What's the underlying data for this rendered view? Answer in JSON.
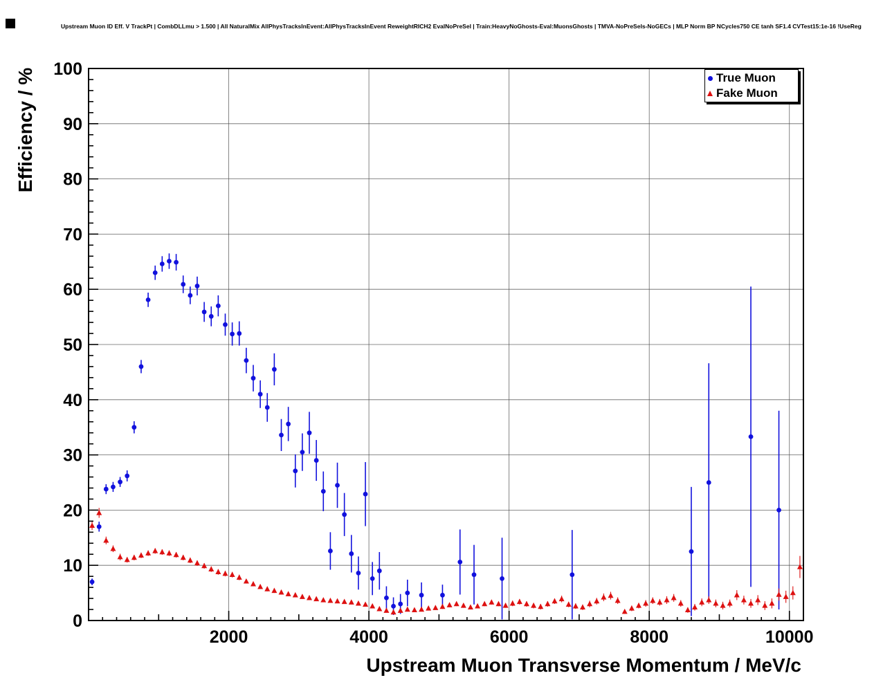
{
  "chart_data": {
    "type": "scatter",
    "title": "Upstream Muon ID Eff. V TrackPt | CombDLLmu > 1.500 | All NaturalMix AllPhysTracksInEvent:AllPhysTracksInEvent ReweightRICH2 EvalNoPreSel | Train:HeavyNoGhosts-Eval:MuonsGhosts | TMVA-NoPreSels-NoGECs | MLP Norm BP NCycles750 CE tanh SF1.4 CVTest15:1e-16 !UseReg",
    "xlabel": "Upstream Muon Transverse Momentum / MeV/c",
    "ylabel": "Efficiency / %",
    "xlim": [
      0,
      10200
    ],
    "ylim": [
      0,
      100
    ],
    "x_ticks": [
      2000,
      4000,
      6000,
      8000,
      10000
    ],
    "y_ticks": [
      0,
      10,
      20,
      30,
      40,
      50,
      60,
      70,
      80,
      90,
      100
    ],
    "x_minor": 200,
    "y_minor": 2,
    "grid": true,
    "legend": {
      "position": "top-right",
      "entries": [
        {
          "label": "True Muon",
          "color": "#1111dd",
          "marker": "circle"
        },
        {
          "label": "Fake Muon",
          "color": "#dd1111",
          "marker": "triangle"
        }
      ]
    },
    "series": [
      {
        "name": "True Muon",
        "color": "#1111dd",
        "marker": "circle",
        "points": [
          [
            50,
            7.0,
            0.6
          ],
          [
            150,
            17.0,
            0.9
          ],
          [
            250,
            23.8,
            0.9
          ],
          [
            350,
            24.2,
            0.9
          ],
          [
            450,
            25.1,
            0.9
          ],
          [
            550,
            26.2,
            1.0
          ],
          [
            650,
            35.0,
            1.1
          ],
          [
            750,
            46.0,
            1.2
          ],
          [
            850,
            58.1,
            1.3
          ],
          [
            950,
            63.0,
            1.3
          ],
          [
            1050,
            64.6,
            1.4
          ],
          [
            1150,
            65.1,
            1.4
          ],
          [
            1250,
            64.9,
            1.5
          ],
          [
            1350,
            60.9,
            1.6
          ],
          [
            1450,
            58.9,
            1.6
          ],
          [
            1550,
            60.6,
            1.7
          ],
          [
            1650,
            55.9,
            1.8
          ],
          [
            1750,
            55.1,
            1.8
          ],
          [
            1850,
            57.0,
            1.9
          ],
          [
            1950,
            53.6,
            2.0
          ],
          [
            2050,
            51.9,
            2.1
          ],
          [
            2150,
            52.0,
            2.2
          ],
          [
            2250,
            47.1,
            2.3
          ],
          [
            2350,
            43.9,
            2.4
          ],
          [
            2450,
            41.0,
            2.5
          ],
          [
            2550,
            38.6,
            2.6
          ],
          [
            2650,
            45.5,
            2.9
          ],
          [
            2750,
            33.6,
            2.9
          ],
          [
            2850,
            35.6,
            3.1
          ],
          [
            2950,
            27.1,
            3.0
          ],
          [
            3050,
            30.5,
            3.4
          ],
          [
            3150,
            34.0,
            3.8
          ],
          [
            3250,
            29.0,
            3.7
          ],
          [
            3350,
            23.4,
            3.6
          ],
          [
            3450,
            12.6,
            3.4
          ],
          [
            3550,
            24.5,
            4.1
          ],
          [
            3650,
            19.2,
            3.9
          ],
          [
            3750,
            12.1,
            3.4
          ],
          [
            3850,
            8.6,
            3.0
          ],
          [
            3950,
            22.9,
            5.8
          ],
          [
            4050,
            7.6,
            3.0
          ],
          [
            4150,
            9.0,
            3.4
          ],
          [
            4250,
            4.1,
            2.1
          ],
          [
            4350,
            2.6,
            1.6
          ],
          [
            4450,
            3.0,
            1.8
          ],
          [
            4550,
            5.0,
            2.4
          ],
          [
            4750,
            4.6,
            2.3
          ],
          [
            5050,
            4.6,
            1.9
          ],
          [
            5300,
            10.6,
            5.9
          ],
          [
            5500,
            8.3,
            5.4
          ],
          [
            5900,
            7.6,
            7.4
          ],
          [
            6900,
            8.3,
            8.1
          ],
          [
            8600,
            12.5,
            11.7
          ],
          [
            8850,
            25.0,
            21.6
          ],
          [
            9450,
            33.3,
            27.2
          ],
          [
            9850,
            20.0,
            18.0
          ]
        ]
      },
      {
        "name": "Fake Muon",
        "color": "#dd1111",
        "marker": "triangle",
        "points": [
          [
            50,
            17.2,
            0.8
          ],
          [
            150,
            19.5,
            0.9
          ],
          [
            250,
            14.5,
            0.7
          ],
          [
            350,
            13.0,
            0.6
          ],
          [
            450,
            11.5,
            0.6
          ],
          [
            550,
            11.0,
            0.5
          ],
          [
            650,
            11.4,
            0.5
          ],
          [
            750,
            11.8,
            0.5
          ],
          [
            850,
            12.2,
            0.5
          ],
          [
            950,
            12.6,
            0.5
          ],
          [
            1050,
            12.4,
            0.5
          ],
          [
            1150,
            12.2,
            0.5
          ],
          [
            1250,
            11.9,
            0.5
          ],
          [
            1350,
            11.4,
            0.5
          ],
          [
            1450,
            10.9,
            0.5
          ],
          [
            1550,
            10.4,
            0.5
          ],
          [
            1650,
            9.9,
            0.5
          ],
          [
            1750,
            9.3,
            0.5
          ],
          [
            1850,
            8.8,
            0.5
          ],
          [
            1950,
            8.5,
            0.5
          ],
          [
            2050,
            8.3,
            0.5
          ],
          [
            2150,
            7.8,
            0.5
          ],
          [
            2250,
            7.1,
            0.4
          ],
          [
            2350,
            6.6,
            0.4
          ],
          [
            2450,
            6.1,
            0.4
          ],
          [
            2550,
            5.7,
            0.4
          ],
          [
            2650,
            5.4,
            0.4
          ],
          [
            2750,
            5.1,
            0.4
          ],
          [
            2850,
            4.8,
            0.4
          ],
          [
            2950,
            4.6,
            0.4
          ],
          [
            3050,
            4.3,
            0.4
          ],
          [
            3150,
            4.1,
            0.4
          ],
          [
            3250,
            3.9,
            0.3
          ],
          [
            3350,
            3.7,
            0.3
          ],
          [
            3450,
            3.6,
            0.3
          ],
          [
            3550,
            3.5,
            0.3
          ],
          [
            3650,
            3.4,
            0.3
          ],
          [
            3750,
            3.3,
            0.3
          ],
          [
            3850,
            3.1,
            0.3
          ],
          [
            3950,
            2.9,
            0.3
          ],
          [
            4050,
            2.6,
            0.3
          ],
          [
            4150,
            2.1,
            0.3
          ],
          [
            4250,
            1.8,
            0.3
          ],
          [
            4350,
            1.5,
            0.3
          ],
          [
            4450,
            1.8,
            0.3
          ],
          [
            4550,
            2.0,
            0.3
          ],
          [
            4650,
            1.9,
            0.3
          ],
          [
            4750,
            2.0,
            0.3
          ],
          [
            4850,
            2.2,
            0.3
          ],
          [
            4950,
            2.3,
            0.3
          ],
          [
            5050,
            2.5,
            0.4
          ],
          [
            5150,
            2.8,
            0.4
          ],
          [
            5250,
            3.0,
            0.4
          ],
          [
            5350,
            2.7,
            0.4
          ],
          [
            5450,
            2.4,
            0.4
          ],
          [
            5550,
            2.6,
            0.4
          ],
          [
            5650,
            3.0,
            0.4
          ],
          [
            5750,
            3.3,
            0.4
          ],
          [
            5850,
            3.0,
            0.4
          ],
          [
            5950,
            2.7,
            0.4
          ],
          [
            6050,
            3.1,
            0.5
          ],
          [
            6150,
            3.4,
            0.5
          ],
          [
            6250,
            3.0,
            0.5
          ],
          [
            6350,
            2.7,
            0.5
          ],
          [
            6450,
            2.5,
            0.5
          ],
          [
            6550,
            3.0,
            0.5
          ],
          [
            6650,
            3.5,
            0.5
          ],
          [
            6750,
            3.9,
            0.6
          ],
          [
            6850,
            2.9,
            0.5
          ],
          [
            6950,
            2.6,
            0.5
          ],
          [
            7050,
            2.4,
            0.5
          ],
          [
            7150,
            3.0,
            0.6
          ],
          [
            7250,
            3.5,
            0.6
          ],
          [
            7350,
            4.2,
            0.7
          ],
          [
            7450,
            4.5,
            0.7
          ],
          [
            7550,
            3.6,
            0.6
          ],
          [
            7650,
            1.6,
            0.4
          ],
          [
            7750,
            2.2,
            0.5
          ],
          [
            7850,
            2.7,
            0.5
          ],
          [
            7950,
            3.1,
            0.6
          ],
          [
            8050,
            3.6,
            0.6
          ],
          [
            8150,
            3.3,
            0.6
          ],
          [
            8250,
            3.7,
            0.7
          ],
          [
            8350,
            4.1,
            0.7
          ],
          [
            8450,
            3.1,
            0.6
          ],
          [
            8550,
            1.9,
            0.5
          ],
          [
            8650,
            2.4,
            0.6
          ],
          [
            8750,
            3.3,
            0.7
          ],
          [
            8850,
            3.7,
            0.7
          ],
          [
            8950,
            3.1,
            0.7
          ],
          [
            9050,
            2.7,
            0.7
          ],
          [
            9150,
            3.1,
            0.7
          ],
          [
            9250,
            4.6,
            0.9
          ],
          [
            9350,
            3.7,
            0.8
          ],
          [
            9450,
            3.1,
            0.8
          ],
          [
            9550,
            3.7,
            0.9
          ],
          [
            9650,
            2.7,
            0.8
          ],
          [
            9750,
            3.1,
            0.9
          ],
          [
            9850,
            4.7,
            1.1
          ],
          [
            9950,
            4.3,
            1.1
          ],
          [
            10050,
            5.0,
            1.2
          ],
          [
            10150,
            9.7,
            2.0
          ]
        ]
      }
    ]
  }
}
